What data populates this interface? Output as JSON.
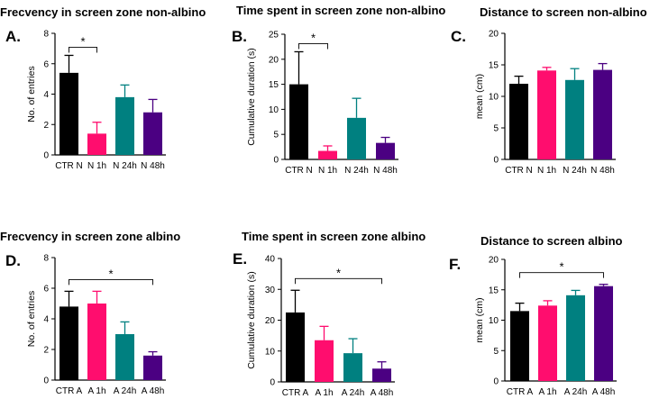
{
  "figure": {
    "colors": [
      "#000000",
      "#ff0d6e",
      "#008080",
      "#4b0082"
    ]
  },
  "chart_data": [
    {
      "type": "bar",
      "letter": "A.",
      "title": "Frecvency in screen zone non-albino",
      "ylabel": "No. of entries",
      "categories": [
        "CTR N",
        "N 1h",
        "N 24h",
        "N 48h"
      ],
      "values": [
        5.4,
        1.4,
        3.8,
        2.8
      ],
      "errors": [
        1.15,
        0.75,
        0.8,
        0.85
      ],
      "ylim": [
        0,
        8
      ],
      "yticks": [
        0,
        2,
        4,
        6,
        8
      ],
      "significance": [
        {
          "from": 0,
          "to": 1,
          "label": "*"
        }
      ]
    },
    {
      "type": "bar",
      "letter": "B.",
      "title": "Time spent in screen zone non-albino",
      "ylabel": "Cumulative duration (s)",
      "categories": [
        "CTR N",
        "N 1h",
        "N 24h",
        "N 48h"
      ],
      "values": [
        15,
        1.7,
        8.3,
        3.3
      ],
      "errors": [
        6.5,
        1.0,
        3.9,
        1.1
      ],
      "ylim": [
        0,
        25
      ],
      "yticks": [
        0,
        5,
        10,
        15,
        20,
        25
      ],
      "significance": [
        {
          "from": 0,
          "to": 1,
          "label": "*"
        }
      ]
    },
    {
      "type": "bar",
      "letter": "C.",
      "title": "Distance to screen non-albino",
      "ylabel": "mean (cm)",
      "categories": [
        "CTR N",
        "N 1h",
        "N 24h",
        "N 48h"
      ],
      "values": [
        12.0,
        14.1,
        12.6,
        14.2
      ],
      "errors": [
        1.2,
        0.5,
        1.8,
        1.0
      ],
      "ylim": [
        0,
        20
      ],
      "yticks": [
        0,
        5,
        10,
        15,
        20
      ],
      "significance": []
    },
    {
      "type": "bar",
      "letter": "D.",
      "title": "Frecvency in screen zone albino",
      "ylabel": "No. of entries",
      "categories": [
        "CTR A",
        "A 1h",
        "A 24h",
        "A 48h"
      ],
      "values": [
        4.8,
        5.0,
        3.0,
        1.6
      ],
      "errors": [
        1.0,
        0.8,
        0.8,
        0.25
      ],
      "ylim": [
        0,
        8
      ],
      "yticks": [
        0,
        2,
        4,
        6,
        8
      ],
      "significance": [
        {
          "from": 0,
          "to": 3,
          "label": "*"
        }
      ]
    },
    {
      "type": "bar",
      "letter": "E.",
      "title": "Time spent in screen zone albino",
      "ylabel": "Cumulative duration (s)",
      "categories": [
        "CTR A",
        "A 1h",
        "A 24h",
        "A 48h"
      ],
      "values": [
        22.5,
        13.5,
        9.3,
        4.3
      ],
      "errors": [
        7.2,
        4.5,
        4.7,
        2.2
      ],
      "ylim": [
        0,
        40
      ],
      "yticks": [
        0,
        10,
        20,
        30,
        40
      ],
      "significance": [
        {
          "from": 0,
          "to": 3,
          "label": "*"
        }
      ]
    },
    {
      "type": "bar",
      "letter": "F.",
      "title": "Distance to screen albino",
      "ylabel": "mean (cm)",
      "categories": [
        "CTR A",
        "A 1h",
        "A 24h",
        "A 48h"
      ],
      "values": [
        11.5,
        12.4,
        14.1,
        15.6
      ],
      "errors": [
        1.3,
        0.8,
        0.8,
        0.3
      ],
      "ylim": [
        0,
        20
      ],
      "yticks": [
        0,
        5,
        10,
        15,
        20
      ],
      "significance": [
        {
          "from": 0,
          "to": 3,
          "label": "*"
        }
      ]
    }
  ]
}
